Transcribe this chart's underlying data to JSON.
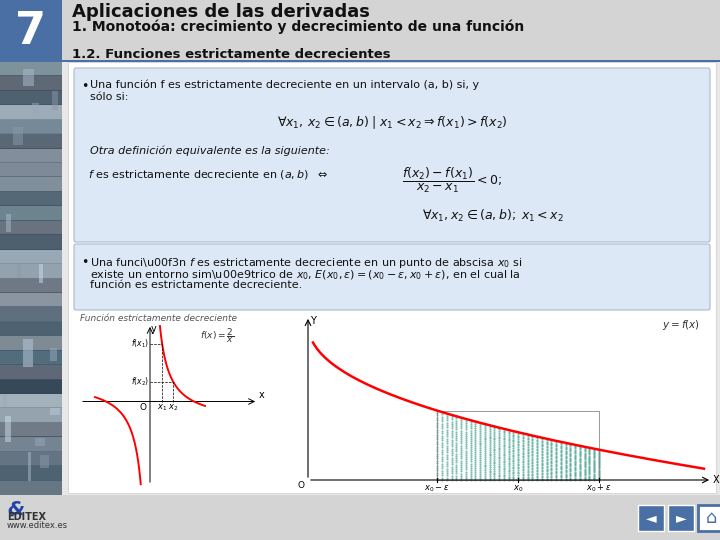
{
  "title": "Aplicaciones de las derivadas",
  "subtitle": "1. Monotoía: crecimiento y decrecimiento de una función",
  "section": "1.2. Funciones estrictamente decrecientes",
  "bg_color": "#e8e8e8",
  "content_bg": "#ffffff",
  "bullet_bg": "#dce8f5",
  "header_bg": "#d4d4d4",
  "footer_bg": "#d4d4d4",
  "num_bg": "#4a6fa5",
  "graph_label": "Función estrictamente decreciente",
  "editex_top": "EDITEX",
  "editex_bot": "www.editex.es"
}
